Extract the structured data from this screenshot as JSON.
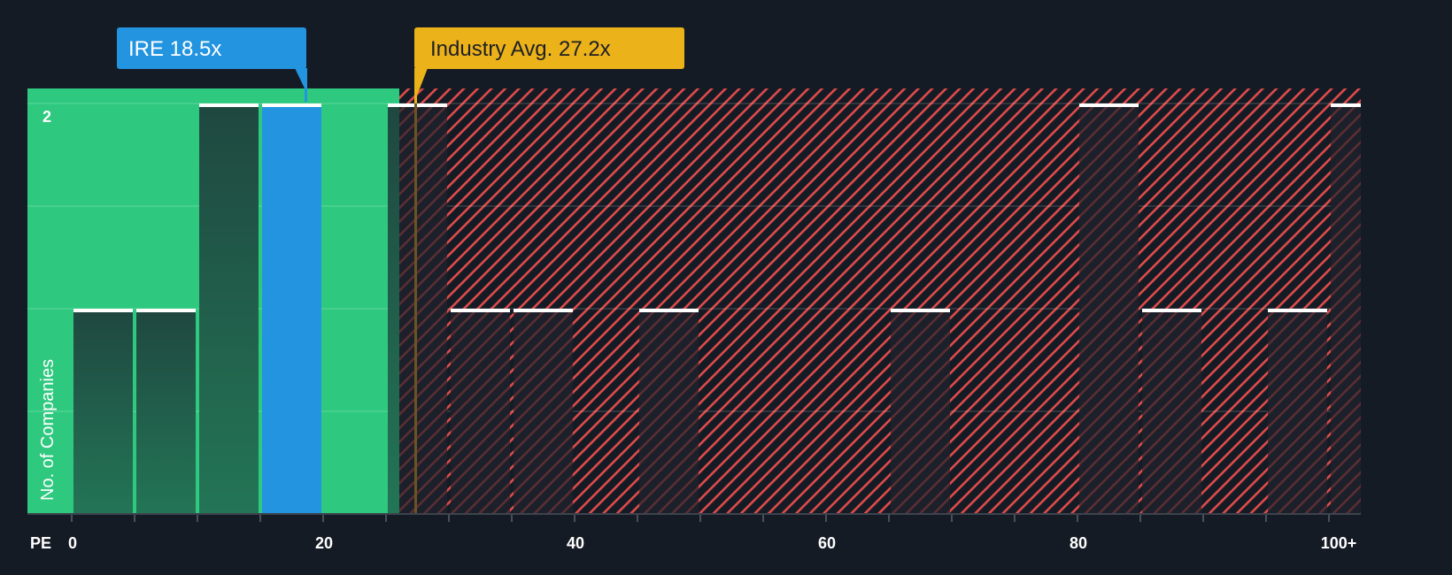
{
  "chart_data": {
    "type": "bar",
    "title": "",
    "xlabel": "PE",
    "ylabel": "No. of Companies",
    "x_ticks": [
      "0",
      "20",
      "40",
      "60",
      "80",
      "100+"
    ],
    "y_ticks": [
      "2"
    ],
    "ylim": [
      0,
      2
    ],
    "xlim": [
      0,
      102.5
    ],
    "bin_width": 5,
    "bins": [
      {
        "range": "0-5",
        "start": 0,
        "value": 1,
        "group": "below_avg"
      },
      {
        "range": "5-10",
        "start": 5,
        "value": 1,
        "group": "below_avg"
      },
      {
        "range": "10-15",
        "start": 10,
        "value": 2,
        "group": "below_avg"
      },
      {
        "range": "15-20",
        "start": 15,
        "value": 2,
        "group": "company"
      },
      {
        "range": "25-30",
        "start": 25,
        "value": 2,
        "group": "above_avg"
      },
      {
        "range": "30-35",
        "start": 30,
        "value": 1,
        "group": "above_avg"
      },
      {
        "range": "35-40",
        "start": 35,
        "value": 1,
        "group": "above_avg"
      },
      {
        "range": "45-50",
        "start": 45,
        "value": 1,
        "group": "above_avg"
      },
      {
        "range": "65-70",
        "start": 65,
        "value": 1,
        "group": "above_avg"
      },
      {
        "range": "80-85",
        "start": 80,
        "value": 2,
        "group": "above_avg"
      },
      {
        "range": "85-90",
        "start": 85,
        "value": 1,
        "group": "above_avg"
      },
      {
        "range": "95-100",
        "start": 95,
        "value": 1,
        "group": "above_avg"
      },
      {
        "range": "100+",
        "start": 100,
        "value": 2,
        "group": "above_avg"
      }
    ],
    "annotations": [
      {
        "label": "IRE 18.5x",
        "value": 18.5,
        "color": "#2394df"
      },
      {
        "label": "Industry Avg. 27.2x",
        "value": 27.2,
        "color": "#ebb21a"
      }
    ],
    "grid": true,
    "legend": null
  },
  "annotations": {
    "company_label": "IRE 18.5x",
    "industry_label": "Industry Avg. 27.2x"
  },
  "axis": {
    "x_title": "PE",
    "y_title": "No. of Companies",
    "y_top_tick": "2",
    "x_tick_labels": [
      {
        "label": "0",
        "value": 0
      },
      {
        "label": "20",
        "value": 20
      },
      {
        "label": "40",
        "value": 40
      },
      {
        "label": "60",
        "value": 60
      },
      {
        "label": "80",
        "value": 80
      },
      {
        "label": "100+",
        "value": 100
      }
    ]
  },
  "colors": {
    "background": "#151b24",
    "fair_region": "#2ec97f",
    "fair_bar": "#214a42",
    "company_bar": "#2394df",
    "overvalued_hatch": "#e04b4b",
    "overvalued_bar": "#1c202a",
    "industry_line": "#ebb21a",
    "bar_cap": "#ffffff",
    "axis": "#3d434d",
    "text": "#ffffff",
    "industry_text": "#1e1f24"
  }
}
